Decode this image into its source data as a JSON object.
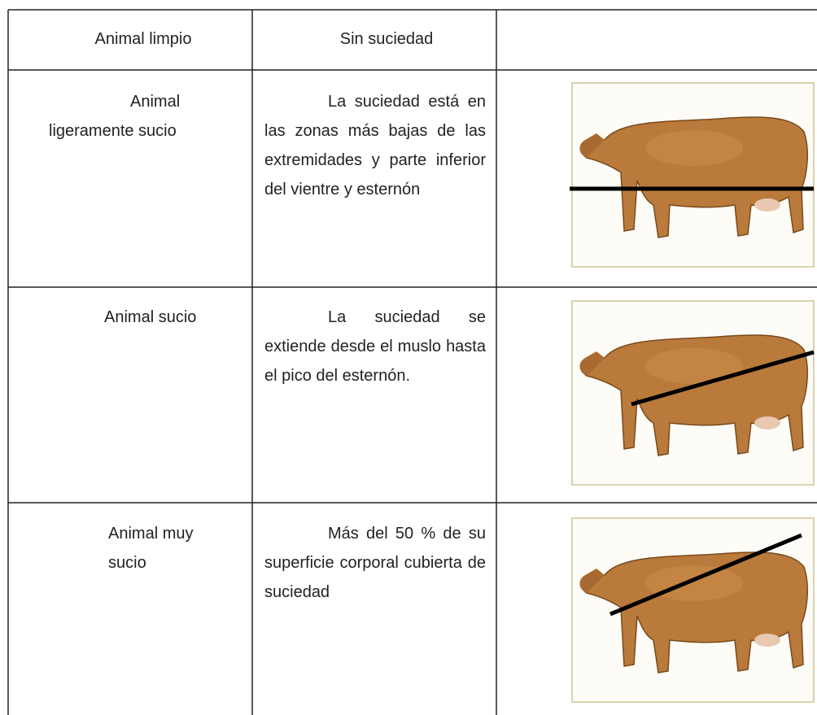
{
  "table": {
    "rows": [
      [
        "Animal limpio",
        "Sin suciedad"
      ],
      [
        "Animal ligeramente sucio",
        "La suciedad está en las zonas más bajas de las extremidades y parte inferior del vientre y esternón"
      ],
      [
        "Animal sucio",
        "La suciedad se extiende desde el muslo hasta el pico del esternón."
      ],
      [
        "Animal muy sucio",
        "Más del 50 % de su superficie corporal cubierta de suciedad"
      ]
    ]
  }
}
